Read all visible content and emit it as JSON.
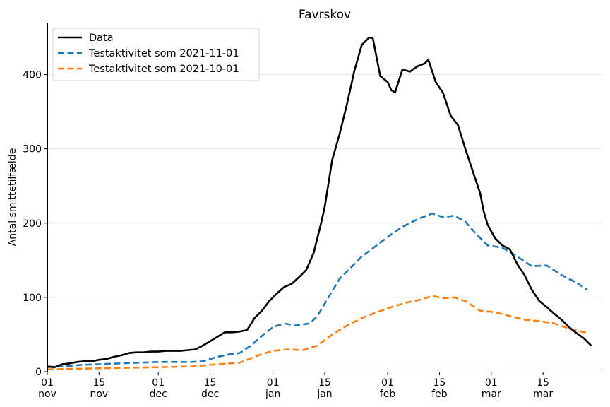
{
  "chart_data": {
    "type": "line",
    "title": "Favrskov",
    "xlabel": "",
    "ylabel": "Antal smittetilfælde",
    "ylim": [
      0,
      470
    ],
    "y_ticks": [
      0,
      100,
      200,
      300,
      400
    ],
    "grid": "horizontal",
    "legend": "top-left",
    "x_ticks": [
      {
        "date": "2021-11-01",
        "day": "01",
        "month": "nov"
      },
      {
        "date": "2021-11-15",
        "day": "15",
        "month": "nov"
      },
      {
        "date": "2021-12-01",
        "day": "01",
        "month": "dec"
      },
      {
        "date": "2021-12-15",
        "day": "15",
        "month": "dec"
      },
      {
        "date": "2022-01-01",
        "day": "01",
        "month": "jan"
      },
      {
        "date": "2022-01-15",
        "day": "15",
        "month": "jan"
      },
      {
        "date": "2022-02-01",
        "day": "01",
        "month": "feb"
      },
      {
        "date": "2022-02-15",
        "day": "15",
        "month": "feb"
      },
      {
        "date": "2022-03-01",
        "day": "01",
        "month": "mar"
      },
      {
        "date": "2022-03-15",
        "day": "15",
        "month": "mar"
      }
    ],
    "series": [
      {
        "name": "Data",
        "color": "#000000",
        "dash": "solid",
        "points": [
          [
            "2021-11-01",
            7
          ],
          [
            "2021-11-03",
            6
          ],
          [
            "2021-11-05",
            10
          ],
          [
            "2021-11-07",
            11
          ],
          [
            "2021-11-09",
            13
          ],
          [
            "2021-11-11",
            14
          ],
          [
            "2021-11-13",
            14
          ],
          [
            "2021-11-15",
            16
          ],
          [
            "2021-11-17",
            17
          ],
          [
            "2021-11-19",
            20
          ],
          [
            "2021-11-21",
            22
          ],
          [
            "2021-11-23",
            25
          ],
          [
            "2021-11-25",
            26
          ],
          [
            "2021-11-27",
            26
          ],
          [
            "2021-11-29",
            27
          ],
          [
            "2021-12-01",
            27
          ],
          [
            "2021-12-03",
            28
          ],
          [
            "2021-12-05",
            28
          ],
          [
            "2021-12-07",
            28
          ],
          [
            "2021-12-09",
            29
          ],
          [
            "2021-12-11",
            30
          ],
          [
            "2021-12-13",
            35
          ],
          [
            "2021-12-15",
            41
          ],
          [
            "2021-12-17",
            47
          ],
          [
            "2021-12-19",
            53
          ],
          [
            "2021-12-21",
            53
          ],
          [
            "2021-12-23",
            54
          ],
          [
            "2021-12-25",
            56
          ],
          [
            "2021-12-27",
            72
          ],
          [
            "2021-12-29",
            82
          ],
          [
            "2021-12-31",
            95
          ],
          [
            "2022-01-02",
            105
          ],
          [
            "2022-01-04",
            114
          ],
          [
            "2022-01-06",
            118
          ],
          [
            "2022-01-08",
            127
          ],
          [
            "2022-01-10",
            137
          ],
          [
            "2022-01-12",
            160
          ],
          [
            "2022-01-14",
            200
          ],
          [
            "2022-01-15",
            222
          ],
          [
            "2022-01-17",
            285
          ],
          [
            "2022-01-19",
            320
          ],
          [
            "2022-01-21",
            360
          ],
          [
            "2022-01-23",
            405
          ],
          [
            "2022-01-25",
            440
          ],
          [
            "2022-01-27",
            450
          ],
          [
            "2022-01-28",
            449
          ],
          [
            "2022-01-30",
            398
          ],
          [
            "2022-02-01",
            390
          ],
          [
            "2022-02-02",
            379
          ],
          [
            "2022-02-03",
            376
          ],
          [
            "2022-02-05",
            407
          ],
          [
            "2022-02-07",
            404
          ],
          [
            "2022-02-09",
            411
          ],
          [
            "2022-02-11",
            415
          ],
          [
            "2022-02-12",
            420
          ],
          [
            "2022-02-14",
            390
          ],
          [
            "2022-02-16",
            375
          ],
          [
            "2022-02-18",
            345
          ],
          [
            "2022-02-20",
            332
          ],
          [
            "2022-02-22",
            300
          ],
          [
            "2022-02-24",
            270
          ],
          [
            "2022-02-26",
            240
          ],
          [
            "2022-02-27",
            215
          ],
          [
            "2022-02-28",
            198
          ],
          [
            "2022-03-02",
            180
          ],
          [
            "2022-03-04",
            170
          ],
          [
            "2022-03-06",
            165
          ],
          [
            "2022-03-08",
            145
          ],
          [
            "2022-03-10",
            130
          ],
          [
            "2022-03-12",
            110
          ],
          [
            "2022-03-14",
            95
          ],
          [
            "2022-03-16",
            87
          ],
          [
            "2022-03-18",
            78
          ],
          [
            "2022-03-20",
            70
          ],
          [
            "2022-03-22",
            60
          ],
          [
            "2022-03-24",
            52
          ],
          [
            "2022-03-26",
            45
          ],
          [
            "2022-03-28",
            35
          ]
        ]
      },
      {
        "name": "Testaktivitet som 2021-11-01",
        "color": "#1f77b4",
        "dash": "dashed",
        "points": [
          [
            "2021-11-01",
            6
          ],
          [
            "2021-11-05",
            7
          ],
          [
            "2021-11-10",
            9
          ],
          [
            "2021-11-15",
            10
          ],
          [
            "2021-11-20",
            11
          ],
          [
            "2021-11-25",
            12
          ],
          [
            "2021-12-01",
            13
          ],
          [
            "2021-12-05",
            13
          ],
          [
            "2021-12-10",
            13
          ],
          [
            "2021-12-13",
            14
          ],
          [
            "2021-12-17",
            20
          ],
          [
            "2021-12-20",
            23
          ],
          [
            "2021-12-23",
            25
          ],
          [
            "2021-12-26",
            35
          ],
          [
            "2021-12-29",
            48
          ],
          [
            "2022-01-01",
            60
          ],
          [
            "2022-01-04",
            65
          ],
          [
            "2022-01-07",
            62
          ],
          [
            "2022-01-11",
            65
          ],
          [
            "2022-01-13",
            75
          ],
          [
            "2022-01-16",
            100
          ],
          [
            "2022-01-19",
            125
          ],
          [
            "2022-01-22",
            140
          ],
          [
            "2022-01-25",
            155
          ],
          [
            "2022-01-29",
            170
          ],
          [
            "2022-02-02",
            185
          ],
          [
            "2022-02-05",
            195
          ],
          [
            "2022-02-09",
            205
          ],
          [
            "2022-02-13",
            213
          ],
          [
            "2022-02-16",
            208
          ],
          [
            "2022-02-19",
            210
          ],
          [
            "2022-02-22",
            202
          ],
          [
            "2022-02-25",
            185
          ],
          [
            "2022-02-28",
            170
          ],
          [
            "2022-03-04",
            167
          ],
          [
            "2022-03-08",
            155
          ],
          [
            "2022-03-12",
            142
          ],
          [
            "2022-03-16",
            143
          ],
          [
            "2022-03-20",
            130
          ],
          [
            "2022-03-24",
            120
          ],
          [
            "2022-03-27",
            110
          ]
        ]
      },
      {
        "name": "Testaktivitet som 2021-10-01",
        "color": "#ff7f0e",
        "dash": "dashed",
        "points": [
          [
            "2021-11-01",
            3
          ],
          [
            "2021-11-10",
            4
          ],
          [
            "2021-11-20",
            5
          ],
          [
            "2021-12-01",
            6
          ],
          [
            "2021-12-10",
            7
          ],
          [
            "2021-12-17",
            10
          ],
          [
            "2021-12-23",
            12
          ],
          [
            "2021-12-28",
            22
          ],
          [
            "2022-01-01",
            28
          ],
          [
            "2022-01-05",
            30
          ],
          [
            "2022-01-09",
            29
          ],
          [
            "2022-01-13",
            35
          ],
          [
            "2022-01-17",
            50
          ],
          [
            "2022-01-21",
            62
          ],
          [
            "2022-01-25",
            72
          ],
          [
            "2022-01-29",
            80
          ],
          [
            "2022-02-02",
            87
          ],
          [
            "2022-02-06",
            93
          ],
          [
            "2022-02-10",
            97
          ],
          [
            "2022-02-13",
            102
          ],
          [
            "2022-02-16",
            99
          ],
          [
            "2022-02-19",
            100
          ],
          [
            "2022-02-22",
            95
          ],
          [
            "2022-02-26",
            82
          ],
          [
            "2022-03-02",
            80
          ],
          [
            "2022-03-06",
            75
          ],
          [
            "2022-03-10",
            70
          ],
          [
            "2022-03-14",
            68
          ],
          [
            "2022-03-18",
            65
          ],
          [
            "2022-03-22",
            58
          ],
          [
            "2022-03-27",
            52
          ]
        ]
      }
    ]
  }
}
